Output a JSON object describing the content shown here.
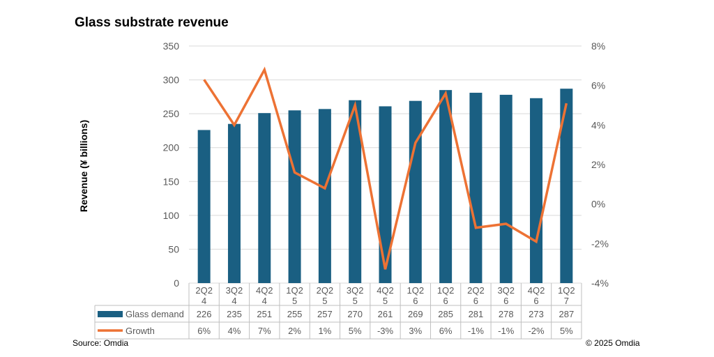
{
  "title": "Glass substrate revenue",
  "source": "Source: Omdia",
  "copyright": "© 2025 Omdia",
  "colors": {
    "bar": "#1a5f82",
    "line": "#ed7234",
    "grid": "#d9d9d9",
    "table_border": "#bfbfbf",
    "text": "#595959"
  },
  "chart_data": {
    "type": "bar+line",
    "title": "Glass substrate revenue",
    "ylabel": "Revenue (¥ billions)",
    "y2label": "",
    "ylim": [
      0,
      350
    ],
    "y_ticks": [
      0,
      50,
      100,
      150,
      200,
      250,
      300,
      350
    ],
    "y2lim": [
      -4,
      8
    ],
    "y2_ticks": [
      -4,
      -2,
      0,
      2,
      4,
      6,
      8
    ],
    "y2_tick_labels": [
      "-4%",
      "-2%",
      "0%",
      "2%",
      "4%",
      "6%",
      "8%"
    ],
    "grid": true,
    "categories": [
      [
        "2Q2",
        "4"
      ],
      [
        "3Q2",
        "4"
      ],
      [
        "4Q2",
        "4"
      ],
      [
        "1Q2",
        "5"
      ],
      [
        "2Q2",
        "5"
      ],
      [
        "3Q2",
        "5"
      ],
      [
        "4Q2",
        "5"
      ],
      [
        "1Q2",
        "6"
      ],
      [
        "1Q2",
        "6"
      ],
      [
        "2Q2",
        "6"
      ],
      [
        "3Q2",
        "6"
      ],
      [
        "4Q2",
        "6"
      ],
      [
        "1Q2",
        "7"
      ]
    ],
    "series": [
      {
        "name": "Glass demand",
        "type": "bar",
        "axis": "left",
        "values": [
          226,
          235,
          251,
          255,
          257,
          270,
          261,
          269,
          285,
          281,
          278,
          273,
          287
        ],
        "labels": [
          "226",
          "235",
          "251",
          "255",
          "257",
          "270",
          "261",
          "269",
          "285",
          "281",
          "278",
          "273",
          "287"
        ]
      },
      {
        "name": "Growth",
        "type": "line",
        "axis": "right",
        "values": [
          6.3,
          4.0,
          6.8,
          1.6,
          0.8,
          5.0,
          -3.3,
          3.1,
          5.6,
          -1.2,
          -1.0,
          -1.9,
          5.1
        ],
        "labels": [
          "6%",
          "4%",
          "7%",
          "2%",
          "1%",
          "5%",
          "-3%",
          "3%",
          "6%",
          "-1%",
          "-1%",
          "-2%",
          "5%"
        ]
      }
    ]
  }
}
